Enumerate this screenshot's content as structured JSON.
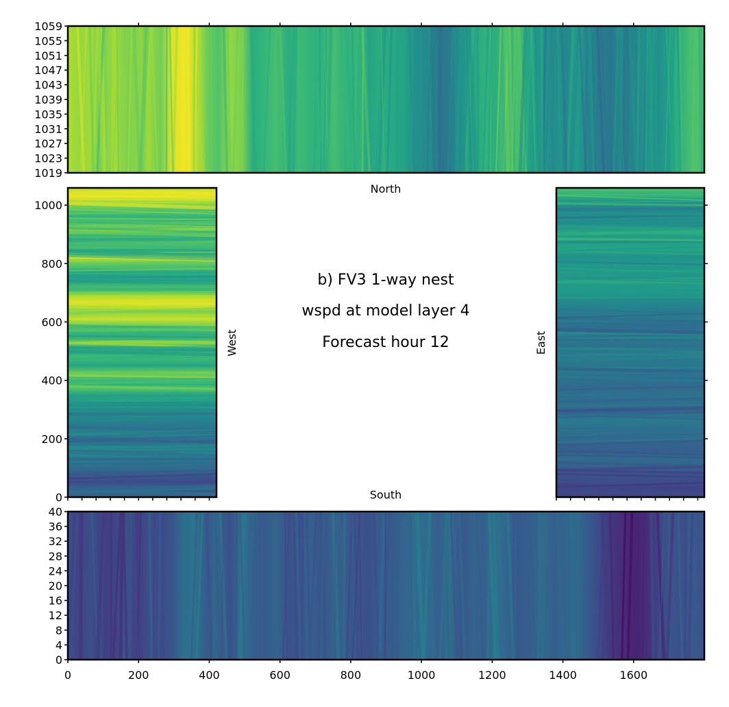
{
  "chart_data": [
    {
      "type": "heatmap",
      "panel": "north",
      "xlabel": "North",
      "xlim": [
        0,
        1800
      ],
      "ylim": [
        1019,
        1059
      ],
      "yticks": [
        "1019",
        "1023",
        "1027",
        "1031",
        "1035",
        "1039",
        "1043",
        "1047",
        "1051",
        "1055",
        "1059"
      ],
      "colormap": "viridis",
      "column_means": [
        0.88,
        0.84,
        0.86,
        0.78,
        0.87,
        0.8,
        0.82,
        0.85,
        0.78,
        0.95,
        0.98,
        0.92,
        0.78,
        0.72,
        0.84,
        0.8,
        0.62,
        0.66,
        0.7,
        0.62,
        0.68,
        0.65,
        0.64,
        0.7,
        0.64,
        0.66,
        0.58,
        0.62,
        0.6,
        0.58,
        0.5,
        0.48,
        0.38,
        0.42,
        0.5,
        0.58,
        0.64,
        0.62,
        0.74,
        0.7,
        0.56,
        0.52,
        0.5,
        0.46,
        0.54,
        0.46,
        0.42,
        0.4,
        0.48,
        0.44,
        0.52,
        0.5,
        0.56,
        0.64,
        0.72,
        0.7
      ]
    },
    {
      "type": "heatmap",
      "panel": "west",
      "ylabel": "West",
      "ylim": [
        0,
        1059
      ],
      "yticks": [
        "0",
        "200",
        "400",
        "600",
        "800",
        "1000"
      ],
      "colormap": "viridis",
      "row_means_top_to_bottom": [
        0.92,
        0.96,
        0.84,
        0.7,
        0.66,
        0.78,
        0.62,
        0.74,
        0.64,
        0.9,
        0.72,
        0.58,
        0.56,
        0.72,
        0.88,
        0.96,
        0.8,
        0.92,
        0.74,
        0.62,
        0.78,
        0.6,
        0.68,
        0.58,
        0.8,
        0.66,
        0.7,
        0.54,
        0.52,
        0.48,
        0.44,
        0.4,
        0.46,
        0.38,
        0.42,
        0.44,
        0.36,
        0.3,
        0.22,
        0.34,
        0.3
      ]
    },
    {
      "type": "heatmap",
      "panel": "east",
      "ylabel": "East",
      "ylim": [
        0,
        1059
      ],
      "colormap": "viridis",
      "row_means_top_to_bottom": [
        0.72,
        0.62,
        0.5,
        0.44,
        0.52,
        0.5,
        0.62,
        0.56,
        0.58,
        0.5,
        0.54,
        0.52,
        0.6,
        0.54,
        0.52,
        0.46,
        0.42,
        0.4,
        0.36,
        0.44,
        0.38,
        0.42,
        0.4,
        0.4,
        0.38,
        0.36,
        0.34,
        0.38,
        0.36,
        0.32,
        0.4,
        0.38,
        0.36,
        0.32,
        0.3,
        0.34,
        0.32,
        0.26,
        0.24,
        0.22,
        0.2
      ]
    },
    {
      "type": "heatmap",
      "panel": "south",
      "xlabel": "South",
      "xlim": [
        0,
        1800
      ],
      "ylim": [
        0,
        40
      ],
      "xticks": [
        "0",
        "200",
        "400",
        "600",
        "800",
        "1000",
        "1200",
        "1400",
        "1600"
      ],
      "yticks": [
        "0",
        "4",
        "8",
        "12",
        "16",
        "20",
        "24",
        "28",
        "32",
        "36",
        "40"
      ],
      "colormap": "viridis",
      "column_means": [
        0.24,
        0.2,
        0.24,
        0.18,
        0.2,
        0.26,
        0.18,
        0.24,
        0.22,
        0.26,
        0.36,
        0.38,
        0.28,
        0.32,
        0.24,
        0.38,
        0.3,
        0.28,
        0.32,
        0.26,
        0.24,
        0.3,
        0.26,
        0.32,
        0.28,
        0.26,
        0.24,
        0.3,
        0.28,
        0.32,
        0.36,
        0.34,
        0.3,
        0.36,
        0.26,
        0.32,
        0.3,
        0.38,
        0.32,
        0.28,
        0.3,
        0.34,
        0.3,
        0.32,
        0.34,
        0.28,
        0.22,
        0.16,
        0.12,
        0.1,
        0.12,
        0.2,
        0.26,
        0.24,
        0.28,
        0.26
      ]
    }
  ],
  "title_lines": [
    "b) FV3 1-way nest",
    "wspd at model layer 4",
    "Forecast hour 12"
  ],
  "labels": {
    "north": "North",
    "south": "South",
    "west": "West",
    "east": "East"
  }
}
